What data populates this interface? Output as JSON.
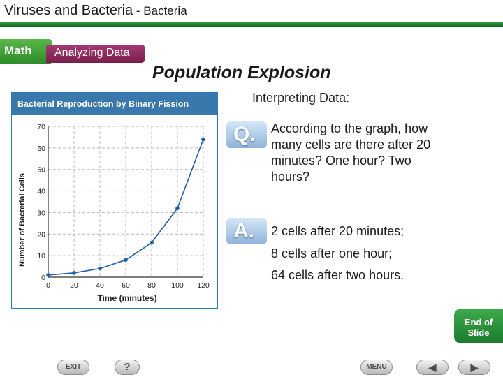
{
  "header": {
    "title_main": "Viruses and Bacteria",
    "title_sub": " - Bacteria"
  },
  "banner": {
    "math": "Math",
    "analyzing": "Analyzing Data"
  },
  "slide_title": "Population Explosion",
  "chart_data": {
    "type": "line",
    "title": "Bacterial Reproduction by Binary Fission",
    "xlabel": "Time (minutes)",
    "ylabel": "Number of Bacterial Cells",
    "x": [
      0,
      20,
      40,
      60,
      80,
      100,
      120
    ],
    "values": [
      1,
      2,
      4,
      8,
      16,
      32,
      64
    ],
    "xlim": [
      0,
      120
    ],
    "ylim": [
      0,
      70
    ],
    "xticks": [
      0,
      20,
      40,
      60,
      80,
      100,
      120
    ],
    "yticks": [
      0,
      10,
      20,
      30,
      40,
      50,
      60,
      70
    ],
    "grid": true,
    "line_color": "#1f5fa8",
    "header_color": "#3878ad"
  },
  "interpreting_label": "Interpreting Data:",
  "question": {
    "badge": "Q.",
    "text": "According to the graph, how many cells are there after 20 minutes? One hour? Two hours?"
  },
  "answer": {
    "badge": "A.",
    "lines": [
      "2 cells after 20 minutes;",
      "8 cells after one hour;",
      "64 cells after two hours."
    ]
  },
  "nav": {
    "end_slide_line1": "End of",
    "end_slide_line2": "Slide",
    "exit": "EXIT",
    "help": "?",
    "menu": "MENU",
    "prev": "◀",
    "next": "▶"
  }
}
